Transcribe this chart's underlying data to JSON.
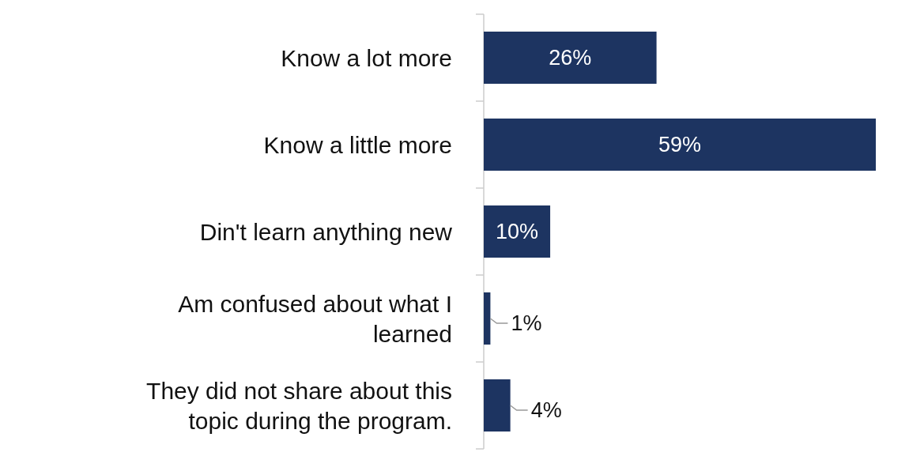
{
  "chart_data": {
    "type": "bar",
    "orientation": "horizontal",
    "categories": [
      "Know a lot more",
      "Know a little more",
      "Din't learn anything new",
      "Am confused about what I learned",
      "They did not share about this topic during the program."
    ],
    "values": [
      26,
      59,
      10,
      1,
      4
    ],
    "value_labels": [
      "26%",
      "59%",
      "10%",
      "1%",
      "4%"
    ],
    "color": "#1d3461"
  }
}
